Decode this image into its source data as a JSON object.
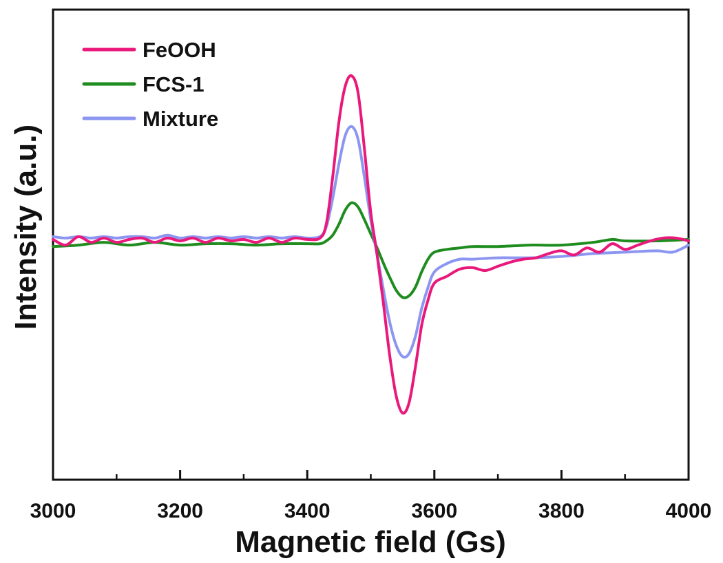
{
  "chart_data": {
    "type": "line",
    "title": "",
    "xlabel": "Magnetic field (Gs)",
    "ylabel": "Intensity (a.u.)",
    "xlim": [
      3000,
      4000
    ],
    "ylim": [
      -1.45,
      1.45
    ],
    "x_ticks": [
      3000,
      3200,
      3400,
      3600,
      3800,
      4000
    ],
    "x_tick_labels": [
      "3000",
      "3200",
      "3400",
      "3600",
      "3800",
      "4000"
    ],
    "x_minor_ticks": [
      3100,
      3300,
      3500,
      3700,
      3900
    ],
    "y_ticks_shown": false,
    "grid": false,
    "legend_position": "top-left",
    "series": [
      {
        "name": "FeOOH",
        "color": "#e8197a",
        "x": [
          3000,
          3020,
          3040,
          3060,
          3080,
          3100,
          3120,
          3140,
          3160,
          3180,
          3200,
          3220,
          3240,
          3260,
          3280,
          3300,
          3320,
          3340,
          3360,
          3380,
          3400,
          3420,
          3430,
          3440,
          3450,
          3460,
          3470,
          3480,
          3490,
          3500,
          3510,
          3520,
          3530,
          3540,
          3550,
          3560,
          3570,
          3580,
          3590,
          3600,
          3620,
          3640,
          3660,
          3680,
          3700,
          3720,
          3740,
          3760,
          3780,
          3800,
          3820,
          3840,
          3860,
          3880,
          3900,
          3920,
          3940,
          3960,
          3980,
          4000
        ],
        "y": [
          0.01,
          -0.03,
          0.03,
          -0.01,
          0.02,
          -0.01,
          0.01,
          0.02,
          -0.01,
          0.02,
          0.0,
          0.02,
          -0.01,
          0.02,
          0.0,
          0.01,
          -0.01,
          0.02,
          -0.01,
          0.02,
          0.01,
          0.02,
          0.12,
          0.45,
          0.85,
          1.1,
          1.17,
          1.05,
          0.65,
          0.2,
          -0.1,
          -0.45,
          -0.82,
          -1.1,
          -1.22,
          -1.15,
          -0.9,
          -0.6,
          -0.42,
          -0.3,
          -0.25,
          -0.2,
          -0.19,
          -0.21,
          -0.18,
          -0.15,
          -0.13,
          -0.12,
          -0.09,
          -0.07,
          -0.1,
          -0.05,
          -0.08,
          -0.02,
          -0.06,
          -0.03,
          0.0,
          0.02,
          0.02,
          0.0
        ]
      },
      {
        "name": "FCS-1",
        "color": "#1e8c1e",
        "x": [
          3000,
          3040,
          3080,
          3120,
          3160,
          3200,
          3240,
          3280,
          3320,
          3360,
          3400,
          3420,
          3430,
          3440,
          3450,
          3460,
          3470,
          3480,
          3490,
          3500,
          3510,
          3520,
          3530,
          3540,
          3550,
          3560,
          3570,
          3580,
          3590,
          3600,
          3620,
          3640,
          3660,
          3700,
          3750,
          3800,
          3850,
          3880,
          3900,
          3950,
          4000
        ],
        "y": [
          -0.04,
          -0.03,
          -0.01,
          -0.03,
          -0.01,
          -0.03,
          -0.02,
          -0.02,
          -0.03,
          -0.02,
          -0.02,
          -0.02,
          0.0,
          0.04,
          0.12,
          0.22,
          0.27,
          0.24,
          0.15,
          0.05,
          -0.05,
          -0.16,
          -0.26,
          -0.35,
          -0.4,
          -0.39,
          -0.33,
          -0.22,
          -0.13,
          -0.08,
          -0.06,
          -0.05,
          -0.04,
          -0.04,
          -0.03,
          -0.03,
          -0.01,
          0.01,
          0.0,
          0.0,
          0.01
        ]
      },
      {
        "name": "Mixture",
        "color": "#8c96f0",
        "x": [
          3000,
          3020,
          3040,
          3060,
          3080,
          3100,
          3120,
          3140,
          3160,
          3180,
          3200,
          3220,
          3240,
          3260,
          3280,
          3300,
          3320,
          3340,
          3360,
          3380,
          3400,
          3420,
          3430,
          3440,
          3450,
          3460,
          3470,
          3480,
          3490,
          3500,
          3510,
          3520,
          3530,
          3540,
          3550,
          3560,
          3570,
          3580,
          3590,
          3600,
          3620,
          3640,
          3660,
          3700,
          3750,
          3800,
          3850,
          3900,
          3950,
          3975,
          4000
        ],
        "y": [
          0.03,
          0.02,
          0.03,
          0.02,
          0.03,
          0.02,
          0.03,
          0.03,
          0.02,
          0.04,
          0.02,
          0.03,
          0.02,
          0.03,
          0.02,
          0.03,
          0.02,
          0.03,
          0.02,
          0.03,
          0.02,
          0.03,
          0.1,
          0.3,
          0.55,
          0.75,
          0.81,
          0.72,
          0.45,
          0.15,
          -0.1,
          -0.35,
          -0.58,
          -0.74,
          -0.82,
          -0.8,
          -0.68,
          -0.48,
          -0.33,
          -0.22,
          -0.16,
          -0.13,
          -0.13,
          -0.12,
          -0.12,
          -0.11,
          -0.09,
          -0.08,
          -0.07,
          -0.08,
          -0.03
        ]
      }
    ]
  }
}
